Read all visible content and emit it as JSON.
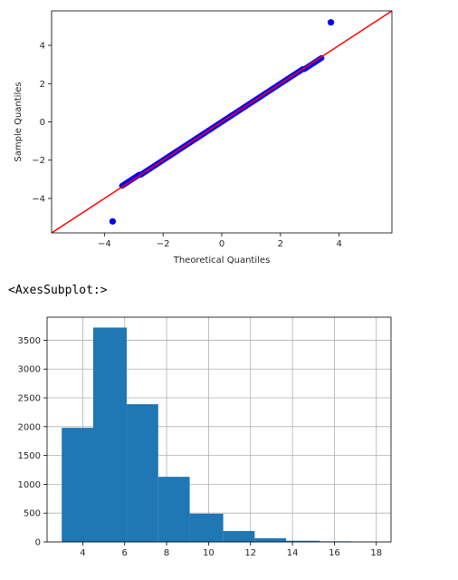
{
  "output_text": "<AxesSubplot:>",
  "chart_data": [
    {
      "type": "scatter",
      "xlabel": "Theoretical Quantiles",
      "ylabel": "Sample Quantiles",
      "xlim": [
        -5.8,
        5.8
      ],
      "ylim": [
        -5.8,
        5.8
      ],
      "xticks": [
        -4,
        -2,
        0,
        2,
        4
      ],
      "yticks": [
        -4,
        -2,
        0,
        2,
        4
      ],
      "grid": false,
      "colors": {
        "points": "#0000ff",
        "line": "#ff0000"
      },
      "reference_line": {
        "slope": 1,
        "intercept": 0
      },
      "points_range": [
        -3.4,
        3.4
      ],
      "outliers": [
        {
          "x": -3.72,
          "y": -5.2
        },
        {
          "x": 3.72,
          "y": 5.2
        }
      ]
    },
    {
      "type": "bar",
      "xlim": [
        2.3,
        18.7
      ],
      "ylim": [
        0,
        3900
      ],
      "xticks": [
        4,
        6,
        8,
        10,
        12,
        14,
        16,
        18
      ],
      "yticks": [
        0,
        500,
        1000,
        1500,
        2000,
        2500,
        3000,
        3500
      ],
      "grid": true,
      "colors": {
        "bars": "#1f77b4",
        "grid": "#b0b0b0"
      },
      "bins": [
        {
          "start": 3.0,
          "end": 4.5,
          "value": 1980
        },
        {
          "start": 4.5,
          "end": 6.1,
          "value": 3720
        },
        {
          "start": 6.1,
          "end": 7.6,
          "value": 2390
        },
        {
          "start": 7.6,
          "end": 9.1,
          "value": 1130
        },
        {
          "start": 9.1,
          "end": 10.7,
          "value": 490
        },
        {
          "start": 10.7,
          "end": 12.2,
          "value": 190
        },
        {
          "start": 12.2,
          "end": 13.7,
          "value": 65
        },
        {
          "start": 13.7,
          "end": 15.3,
          "value": 20
        },
        {
          "start": 15.3,
          "end": 16.8,
          "value": 10
        },
        {
          "start": 16.8,
          "end": 18.3,
          "value": 3
        }
      ]
    }
  ]
}
